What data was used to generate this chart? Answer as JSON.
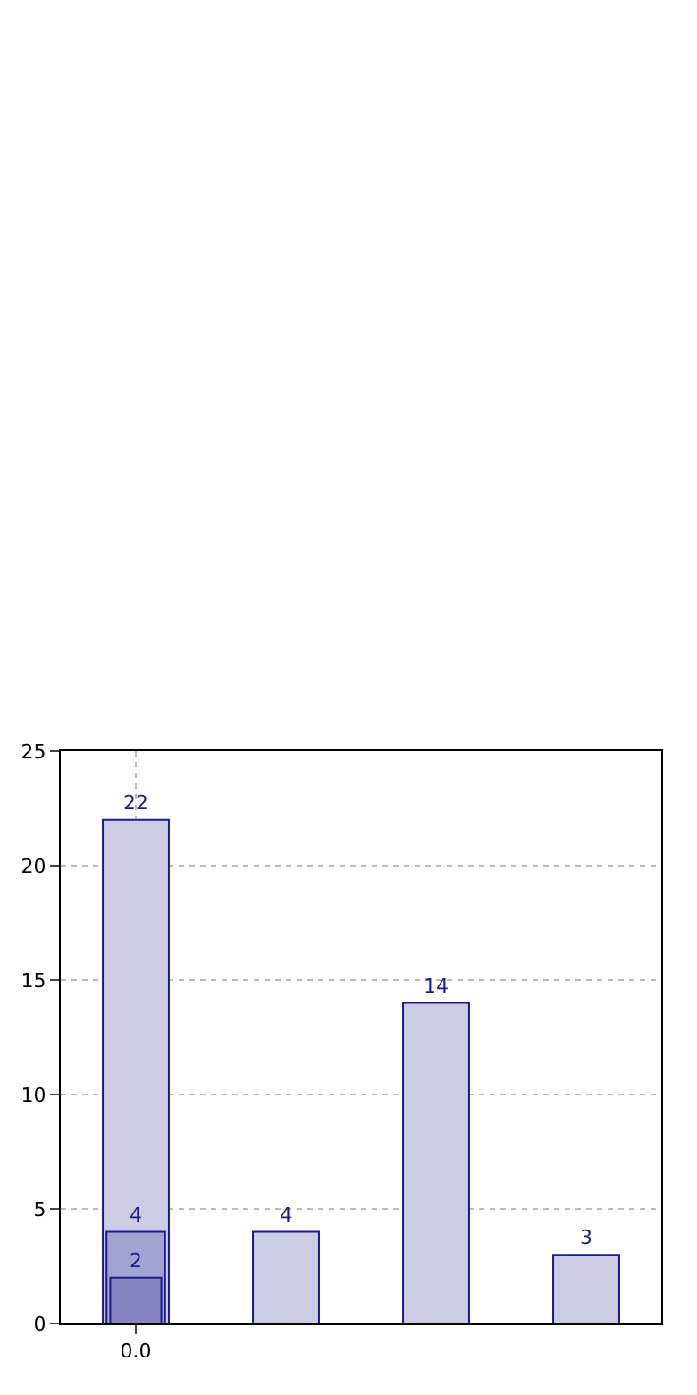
{
  "chart_data": {
    "type": "bar",
    "categories": [
      "0.0",
      null,
      null,
      null
    ],
    "series": [
      {
        "color": "#ccccE5",
        "values": [
          22,
          4,
          14,
          3
        ]
      },
      {
        "color": "#a3a3d1",
        "values": [
          4,
          null,
          null,
          null
        ]
      },
      {
        "color": "#8585c2",
        "values": [
          2,
          null,
          null,
          null
        ]
      }
    ],
    "ylim": [
      0,
      25
    ],
    "yticks": [
      0,
      5,
      10,
      15,
      20,
      25
    ],
    "grid": true,
    "data_labels": true,
    "legend": false
  }
}
